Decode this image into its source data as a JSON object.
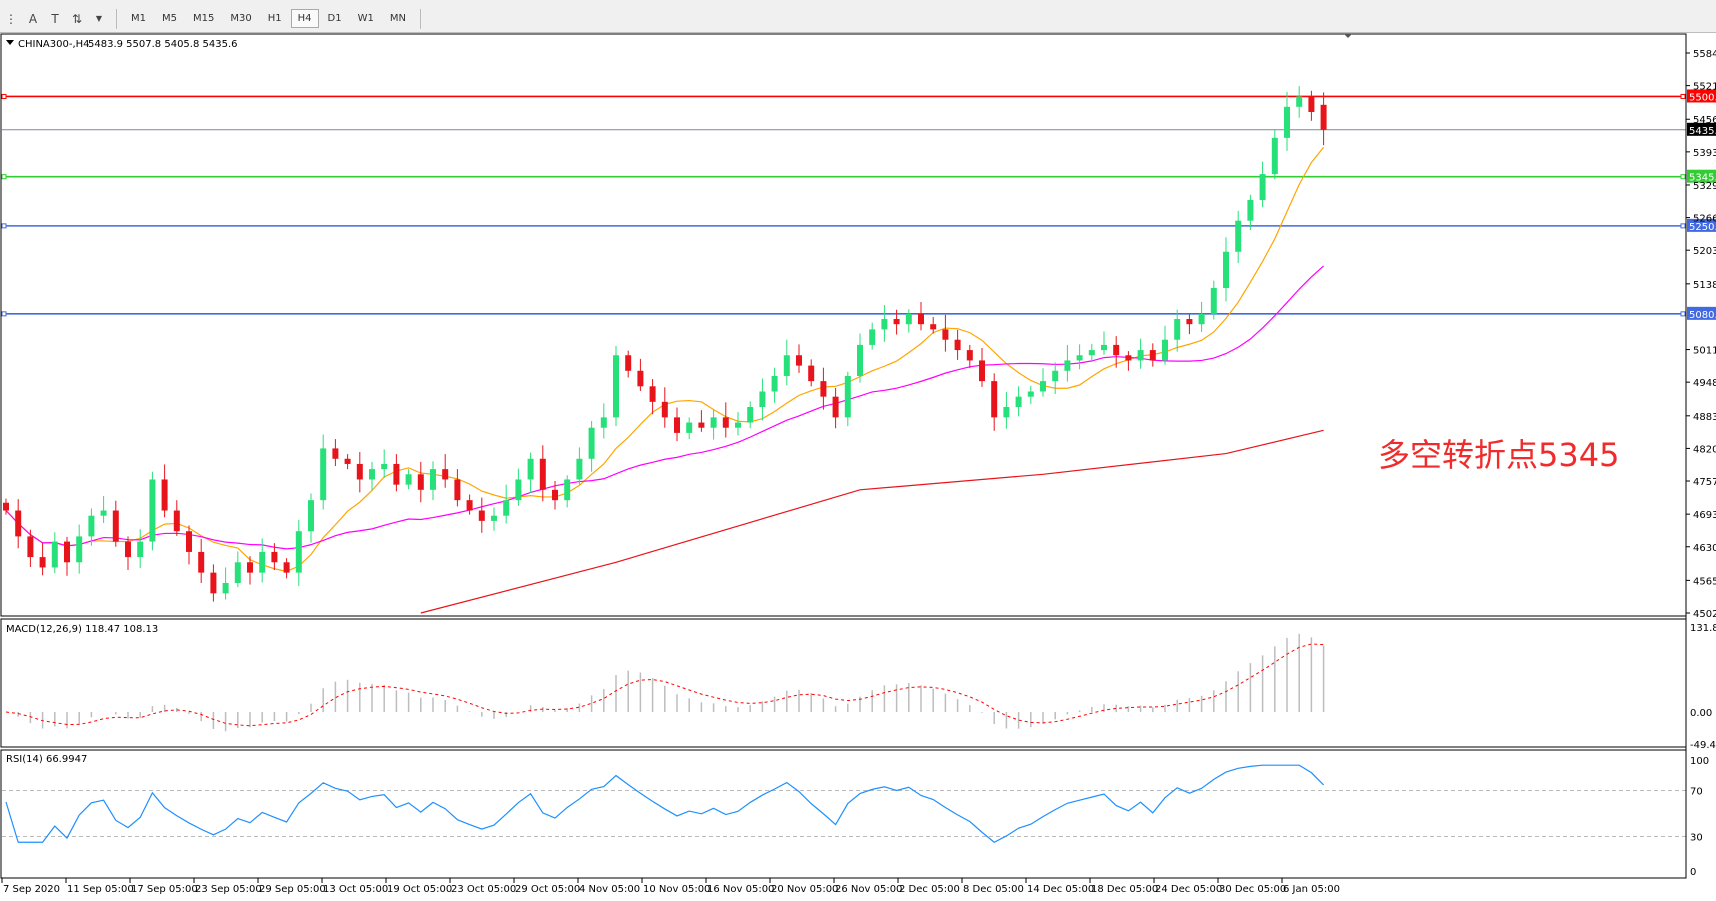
{
  "toolbar": {
    "icons": [
      "line-studies-icon",
      "text-icon",
      "text-label-icon",
      "arrows-icon"
    ],
    "icon_glyphs": [
      "⋮",
      "A",
      "T",
      "⇅"
    ],
    "timeframes": [
      "M1",
      "M5",
      "M15",
      "M30",
      "H1",
      "H4",
      "D1",
      "W1",
      "MN"
    ],
    "active_timeframe": "H4"
  },
  "header": {
    "symbol_label": "CHINA300-,H4",
    "ohlc_text": "5483.9 5507.8 5405.8 5435.6",
    "open": 5483.9,
    "high": 5507.8,
    "low": 5405.8,
    "close": 5435.6
  },
  "annotation": {
    "text": "多空转折点5345",
    "color": "#ef2b2b"
  },
  "price_axis": {
    "ticks": [
      "5584.",
      "5521.",
      "5456.",
      "5393.",
      "5329.",
      "5266.",
      "5203.",
      "5138.",
      "5011.",
      "4948.",
      "4883.",
      "4820.",
      "4757.",
      "4693.",
      "4630.",
      "4565.",
      "4502."
    ],
    "ylim": [
      4502,
      5584
    ]
  },
  "levels": [
    {
      "label": "5500.",
      "value": 5500,
      "color": "#ff0000"
    },
    {
      "label": "5435.",
      "value": 5435.6,
      "color": "#000000",
      "line_color": "#7d8a99"
    },
    {
      "label": "5345.",
      "value": 5345,
      "color": "#32cd32"
    },
    {
      "label": "5250.",
      "value": 5250,
      "color": "#4169e1"
    },
    {
      "label": "5080.",
      "value": 5080,
      "color": "#4169e1"
    }
  ],
  "macd": {
    "label": "MACD(12,26,9) 118.47 108.13",
    "ticks": [
      "131.83",
      "0.00",
      "-49.48"
    ],
    "ylim": [
      -49.48,
      131.83
    ]
  },
  "rsi": {
    "label": "RSI(14) 66.9947",
    "ticks": [
      "100",
      "70",
      "30",
      "0"
    ],
    "levels": [
      70,
      30
    ],
    "color": "#1e90ff"
  },
  "time_axis": [
    "7 Sep 2020",
    "11 Sep 05:00",
    "17 Sep 05:00",
    "23 Sep 05:00",
    "29 Sep 05:00",
    "13 Oct 05:00",
    "19 Oct 05:00",
    "23 Oct 05:00",
    "29 Oct 05:00",
    "4 Nov 05:00",
    "10 Nov 05:00",
    "16 Nov 05:00",
    "20 Nov 05:00",
    "26 Nov 05:00",
    "2 Dec 05:00",
    "8 Dec 05:00",
    "14 Dec 05:00",
    "18 Dec 05:00",
    "24 Dec 05:00",
    "30 Dec 05:00",
    "6 Jan 05:00"
  ],
  "colors": {
    "bull": "#26e07a",
    "bear": "#e8141c",
    "ma_fast": "#ffa500",
    "ma_mid": "#ff00ff",
    "ma_slow": "#e8141c",
    "macd_hist": "#bdbdbd",
    "macd_signal": "#ff0000"
  },
  "chart_data": {
    "type": "candlestick",
    "closes": [
      4700,
      4650,
      4610,
      4590,
      4640,
      4600,
      4650,
      4690,
      4700,
      4640,
      4610,
      4640,
      4760,
      4700,
      4660,
      4620,
      4580,
      4540,
      4560,
      4600,
      4580,
      4620,
      4600,
      4580,
      4660,
      4720,
      4820,
      4800,
      4790,
      4760,
      4780,
      4790,
      4750,
      4770,
      4740,
      4780,
      4760,
      4720,
      4700,
      4680,
      4690,
      4720,
      4760,
      4800,
      4740,
      4720,
      4760,
      4800,
      4860,
      4880,
      5000,
      4970,
      4940,
      4910,
      4880,
      4850,
      4870,
      4860,
      4880,
      4860,
      4870,
      4900,
      4930,
      4960,
      5000,
      4980,
      4950,
      4920,
      4880,
      4960,
      5020,
      5050,
      5070,
      5060,
      5080,
      5060,
      5050,
      5030,
      5010,
      4990,
      4950,
      4880,
      4900,
      4920,
      4930,
      4950,
      4970,
      4990,
      5000,
      5010,
      5020,
      5000,
      4990,
      5010,
      4990,
      5030,
      5070,
      5060,
      5080,
      5130,
      5200,
      5260,
      5300,
      5350,
      5420,
      5480,
      5500,
      5470,
      5435.6
    ],
    "ma_slow_points": [
      [
        34,
        4502
      ],
      [
        50,
        4600
      ],
      [
        70,
        4740
      ],
      [
        85,
        4770
      ],
      [
        100,
        4810
      ],
      [
        108,
        4855
      ]
    ]
  }
}
